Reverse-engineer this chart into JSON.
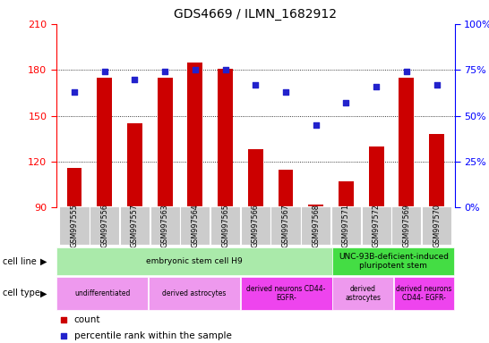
{
  "title": "GDS4669 / ILMN_1682912",
  "samples": [
    "GSM997555",
    "GSM997556",
    "GSM997557",
    "GSM997563",
    "GSM997564",
    "GSM997565",
    "GSM997566",
    "GSM997567",
    "GSM997568",
    "GSM997571",
    "GSM997572",
    "GSM997569",
    "GSM997570"
  ],
  "count_values": [
    116,
    175,
    145,
    175,
    185,
    181,
    128,
    115,
    92,
    107,
    130,
    175,
    138
  ],
  "percentile_values": [
    63,
    74,
    70,
    74,
    75,
    75,
    67,
    63,
    45,
    57,
    66,
    74,
    67
  ],
  "ylim_left": [
    90,
    210
  ],
  "ylim_right": [
    0,
    100
  ],
  "yticks_left": [
    90,
    120,
    150,
    180,
    210
  ],
  "yticks_right": [
    0,
    25,
    50,
    75,
    100
  ],
  "bar_color": "#cc0000",
  "dot_color": "#2222cc",
  "bar_bottom": 90,
  "cell_line_groups": [
    {
      "label": "embryonic stem cell H9",
      "start": 0,
      "end": 9,
      "color": "#aaeaaa"
    },
    {
      "label": "UNC-93B-deficient-induced\npluripotent stem",
      "start": 9,
      "end": 13,
      "color": "#44dd44"
    }
  ],
  "cell_type_groups": [
    {
      "label": "undifferentiated",
      "start": 0,
      "end": 3,
      "color": "#ee99ee"
    },
    {
      "label": "derived astrocytes",
      "start": 3,
      "end": 6,
      "color": "#ee99ee"
    },
    {
      "label": "derived neurons CD44-\nEGFR-",
      "start": 6,
      "end": 9,
      "color": "#ee44ee"
    },
    {
      "label": "derived\nastrocytes",
      "start": 9,
      "end": 11,
      "color": "#ee99ee"
    },
    {
      "label": "derived neurons\nCD44- EGFR-",
      "start": 11,
      "end": 13,
      "color": "#ee44ee"
    }
  ],
  "legend_count_color": "#cc0000",
  "legend_dot_color": "#2222cc",
  "grid_lines": [
    120,
    150,
    180
  ],
  "sample_bg_color": "#cccccc",
  "bar_width": 0.5
}
